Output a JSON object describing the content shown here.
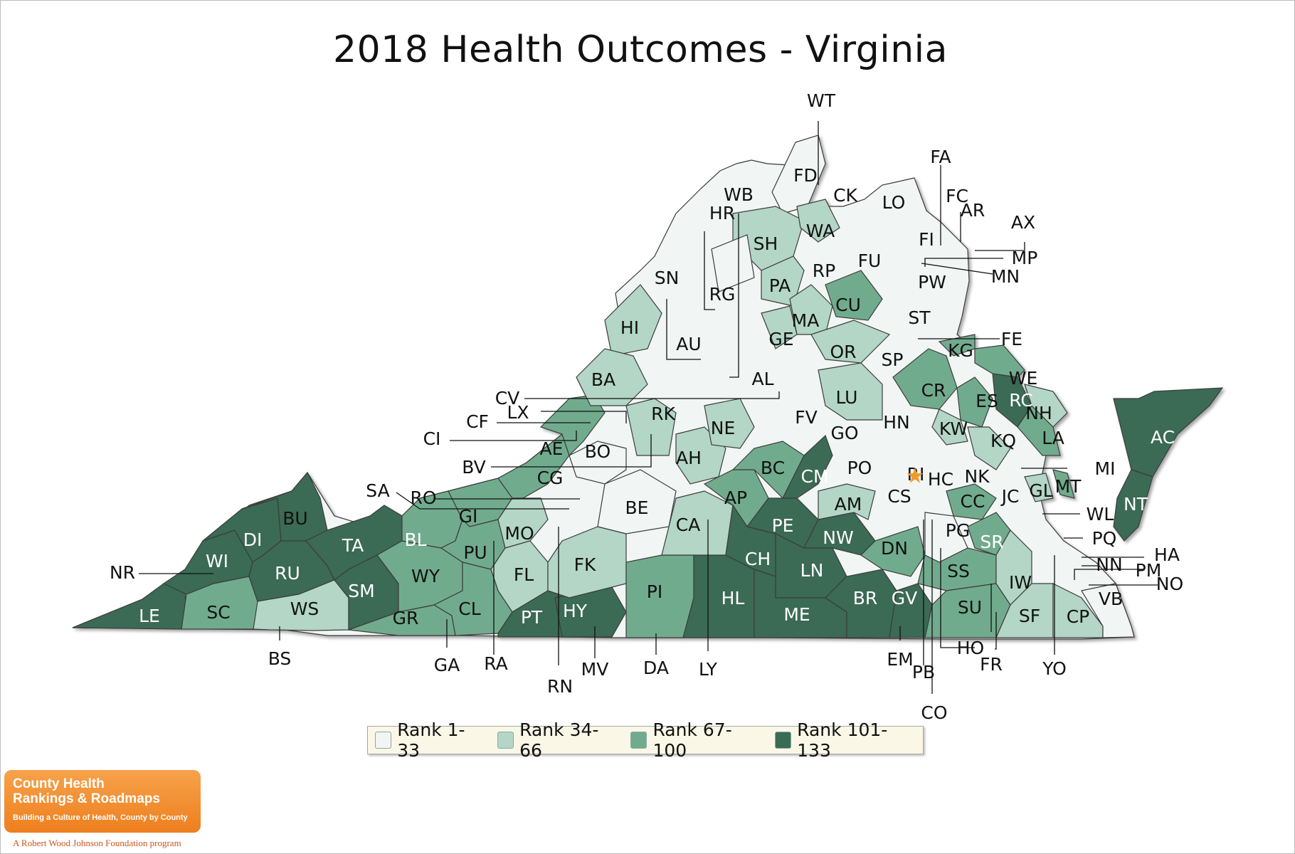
{
  "title": "2018 Health Outcomes - Virginia",
  "legend": [
    {
      "label": "Rank 1-33",
      "color": "#f1f5f3"
    },
    {
      "label": "Rank 34-66",
      "color": "#b3d6c6"
    },
    {
      "label": "Rank 67-100",
      "color": "#71ab8d"
    },
    {
      "label": "Rank 101-133",
      "color": "#3a6b55"
    }
  ],
  "logo": {
    "line1": "County Health",
    "line2": "Rankings & Roadmaps",
    "line3": "Building a Culture of Health, County by County"
  },
  "footer": "A Robert Wood Johnson Foundation program",
  "counties": [
    {
      "code": "WT"
    },
    {
      "code": "FA"
    },
    {
      "code": "FD"
    },
    {
      "code": "CK"
    },
    {
      "code": "LO"
    },
    {
      "code": "FC"
    },
    {
      "code": "AR"
    },
    {
      "code": "AX"
    },
    {
      "code": "WB"
    },
    {
      "code": "HR"
    },
    {
      "code": "SH"
    },
    {
      "code": "WA"
    },
    {
      "code": "FI"
    },
    {
      "code": "MP"
    },
    {
      "code": "MN"
    },
    {
      "code": "FU"
    },
    {
      "code": "RP"
    },
    {
      "code": "PW"
    },
    {
      "code": "SN"
    },
    {
      "code": "RG"
    },
    {
      "code": "PA"
    },
    {
      "code": "CU"
    },
    {
      "code": "MA"
    },
    {
      "code": "ST"
    },
    {
      "code": "HI"
    },
    {
      "code": "AU"
    },
    {
      "code": "GE"
    },
    {
      "code": "OR"
    },
    {
      "code": "FE"
    },
    {
      "code": "KG"
    },
    {
      "code": "SP"
    },
    {
      "code": "AL"
    },
    {
      "code": "BA"
    },
    {
      "code": "WE"
    },
    {
      "code": "CR"
    },
    {
      "code": "CV"
    },
    {
      "code": "RC"
    },
    {
      "code": "LX"
    },
    {
      "code": "LU"
    },
    {
      "code": "ES"
    },
    {
      "code": "NH"
    },
    {
      "code": "RK"
    },
    {
      "code": "FV"
    },
    {
      "code": "CF"
    },
    {
      "code": "HN"
    },
    {
      "code": "NE"
    },
    {
      "code": "KW"
    },
    {
      "code": "LA"
    },
    {
      "code": "GO"
    },
    {
      "code": "AC"
    },
    {
      "code": "CI"
    },
    {
      "code": "AE"
    },
    {
      "code": "KQ"
    },
    {
      "code": "BO"
    },
    {
      "code": "BC"
    },
    {
      "code": "AH"
    },
    {
      "code": "BV"
    },
    {
      "code": "MI"
    },
    {
      "code": "PO"
    },
    {
      "code": "CM"
    },
    {
      "code": "RI"
    },
    {
      "code": "HC"
    },
    {
      "code": "NK"
    },
    {
      "code": "MT"
    },
    {
      "code": "SA"
    },
    {
      "code": "CG"
    },
    {
      "code": "GL"
    },
    {
      "code": "RO"
    },
    {
      "code": "CS"
    },
    {
      "code": "JC"
    },
    {
      "code": "AP"
    },
    {
      "code": "CC"
    },
    {
      "code": "NT"
    },
    {
      "code": "BU"
    },
    {
      "code": "GI"
    },
    {
      "code": "BE"
    },
    {
      "code": "AM"
    },
    {
      "code": "WL"
    },
    {
      "code": "PE"
    },
    {
      "code": "PG"
    },
    {
      "code": "CA"
    },
    {
      "code": "MO"
    },
    {
      "code": "PQ"
    },
    {
      "code": "DI"
    },
    {
      "code": "TA"
    },
    {
      "code": "BL"
    },
    {
      "code": "NW"
    },
    {
      "code": "SR"
    },
    {
      "code": "HA"
    },
    {
      "code": "DN"
    },
    {
      "code": "PU"
    },
    {
      "code": "NR"
    },
    {
      "code": "WI"
    },
    {
      "code": "FK"
    },
    {
      "code": "NN"
    },
    {
      "code": "CH"
    },
    {
      "code": "PM"
    },
    {
      "code": "FL"
    },
    {
      "code": "LN"
    },
    {
      "code": "RU"
    },
    {
      "code": "SS"
    },
    {
      "code": "NO"
    },
    {
      "code": "IW"
    },
    {
      "code": "WY"
    },
    {
      "code": "SM"
    },
    {
      "code": "PI"
    },
    {
      "code": "HL"
    },
    {
      "code": "BR"
    },
    {
      "code": "GV"
    },
    {
      "code": "VB"
    },
    {
      "code": "HY"
    },
    {
      "code": "CL"
    },
    {
      "code": "SU"
    },
    {
      "code": "LE"
    },
    {
      "code": "SC"
    },
    {
      "code": "WS"
    },
    {
      "code": "GR"
    },
    {
      "code": "PT"
    },
    {
      "code": "ME"
    },
    {
      "code": "SF"
    },
    {
      "code": "CP"
    },
    {
      "code": "HO"
    },
    {
      "code": "EM"
    },
    {
      "code": "FR"
    },
    {
      "code": "BS"
    },
    {
      "code": "GA"
    },
    {
      "code": "RA"
    },
    {
      "code": "MV"
    },
    {
      "code": "DA"
    },
    {
      "code": "LY"
    },
    {
      "code": "YO"
    },
    {
      "code": "PB"
    },
    {
      "code": "RN"
    },
    {
      "code": "CO"
    }
  ]
}
